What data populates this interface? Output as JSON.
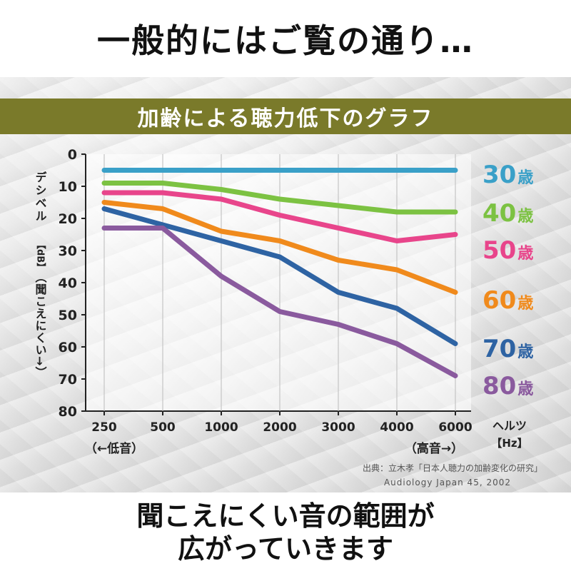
{
  "header": {
    "caption": "一般的にはご覧の通り…"
  },
  "footer": {
    "line1": "聞こえにくい音の範囲が",
    "line2": "広がっていきます"
  },
  "colors": {
    "banner": "#7a7a2a",
    "age30": "#3aa0c8",
    "age40": "#7cc242",
    "age50": "#e8458b",
    "age60": "#f08a1c",
    "age70": "#2e63a3",
    "age80": "#8a5a9e"
  },
  "chart_data": {
    "type": "line",
    "title": "加齢による聴力低下のグラフ",
    "ylabel": "デシベル",
    "ylabel_unit": "【dB】",
    "ylabel_note": "（聞こえにくい→）",
    "xlabel": "ヘルツ",
    "xlabel_unit": "【Hz】",
    "x_low_label": "（←低音）",
    "x_high_label": "（高音→）",
    "categories": [
      "250",
      "500",
      "1000",
      "2000",
      "3000",
      "4000",
      "6000"
    ],
    "yticks": [
      "0",
      "10",
      "20",
      "30",
      "40",
      "50",
      "60",
      "70",
      "80"
    ],
    "ylim": [
      0,
      80
    ],
    "y_inverted": true,
    "series": [
      {
        "name": "30歳",
        "num": "30",
        "unit": "歳",
        "color": "#3aa0c8",
        "values": [
          5,
          5,
          5,
          5,
          5,
          5,
          5
        ]
      },
      {
        "name": "40歳",
        "num": "40",
        "unit": "歳",
        "color": "#7cc242",
        "values": [
          9,
          9,
          11,
          14,
          16,
          18,
          18
        ]
      },
      {
        "name": "50歳",
        "num": "50",
        "unit": "歳",
        "color": "#e8458b",
        "values": [
          12,
          12,
          14,
          19,
          23,
          27,
          25
        ]
      },
      {
        "name": "60歳",
        "num": "60",
        "unit": "歳",
        "color": "#f08a1c",
        "values": [
          15,
          17,
          24,
          27,
          33,
          36,
          43
        ]
      },
      {
        "name": "70歳",
        "num": "70",
        "unit": "歳",
        "color": "#2e63a3",
        "values": [
          17,
          22,
          27,
          32,
          43,
          48,
          59
        ]
      },
      {
        "name": "80歳",
        "num": "80",
        "unit": "歳",
        "color": "#8a5a9e",
        "values": [
          23,
          23,
          38,
          49,
          53,
          59,
          69
        ]
      }
    ],
    "source": {
      "line1": "出典：立木孝「日本人聴力の加齢変化の研究」",
      "line2": "Audiology Japan 45, 2002"
    }
  }
}
